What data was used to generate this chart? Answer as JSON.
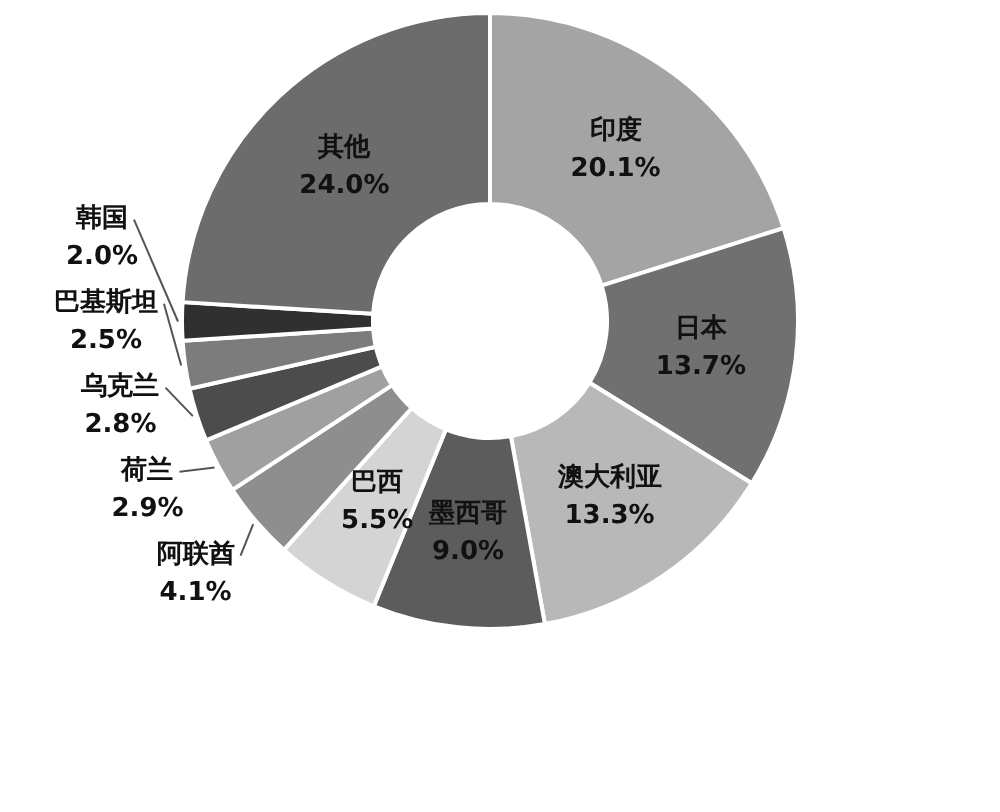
{
  "chart_data": {
    "type": "donut",
    "categories": [
      "印度",
      "日本",
      "澳大利亚",
      "墨西哥",
      "巴西",
      "阿联酋",
      "荷兰",
      "乌克兰",
      "巴基斯坦",
      "韩国",
      "其他"
    ],
    "values": [
      20.1,
      13.7,
      13.3,
      9.0,
      5.5,
      4.1,
      2.9,
      2.8,
      2.5,
      2.0,
      24.0
    ],
    "value_labels": [
      "20.1%",
      "13.7%",
      "13.3%",
      "9.0%",
      "5.5%",
      "4.1%",
      "2.9%",
      "2.8%",
      "2.5%",
      "2.0%",
      "24.0%"
    ],
    "colors": [
      "#a4a4a4",
      "#707070",
      "#b8b8b8",
      "#5c5c5c",
      "#d4d4d4",
      "#8e8e8e",
      "#a0a0a0",
      "#4c4c4c",
      "#7c7c7c",
      "#303030",
      "#6c6c6c"
    ],
    "legend": false
  }
}
